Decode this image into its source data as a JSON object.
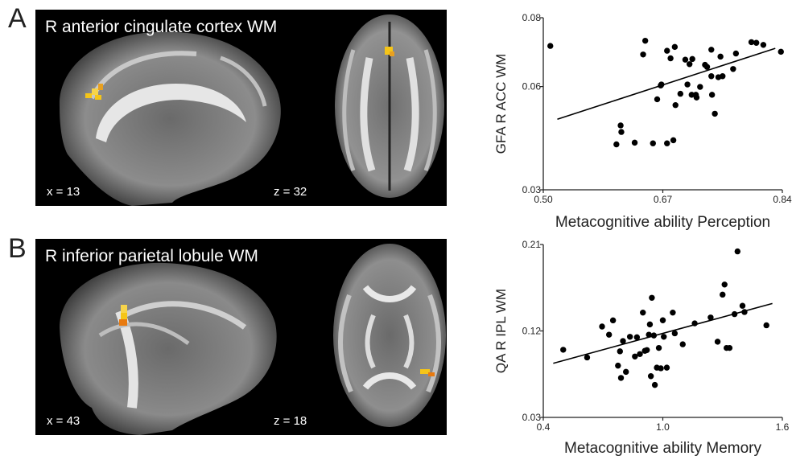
{
  "panels": [
    {
      "letter": "A",
      "title": "R anterior cingulate cortex WM",
      "sagittal_coord": "x = 13",
      "axial_coord": "z = 32"
    },
    {
      "letter": "B",
      "title": "R inferior parietal lobule WM",
      "sagittal_coord": "x = 43",
      "axial_coord": "z = 18"
    }
  ],
  "colors": {
    "highlight": "#f5c518",
    "highlight_edge": "#e87a10",
    "background": "#000000",
    "points": "#000000"
  },
  "chart_data": [
    {
      "type": "scatter",
      "xlabel": "Metacognitive ability Perception",
      "ylabel": "GFA R ACC WM",
      "xlim": [
        0.5,
        0.84
      ],
      "ylim": [
        0.03,
        0.08
      ],
      "xticks": [
        "0.50",
        "0.67",
        "0.84"
      ],
      "yticks": [
        "0.03",
        "0.06",
        "0.08"
      ],
      "ytick_values": [
        0.03,
        0.06,
        0.08
      ],
      "xtick_values": [
        0.5,
        0.67,
        0.84
      ],
      "fit_line": [
        [
          0.52,
          0.0505
        ],
        [
          0.83,
          0.0711
        ]
      ],
      "points": [
        [
          0.51,
          0.0718
        ],
        [
          0.61,
          0.0487
        ],
        [
          0.611,
          0.0468
        ],
        [
          0.604,
          0.0432
        ],
        [
          0.63,
          0.0437
        ],
        [
          0.645,
          0.0733
        ],
        [
          0.642,
          0.0693
        ],
        [
          0.656,
          0.0435
        ],
        [
          0.676,
          0.0435
        ],
        [
          0.662,
          0.0563
        ],
        [
          0.667,
          0.0603
        ],
        [
          0.668,
          0.0606
        ],
        [
          0.681,
          0.0682
        ],
        [
          0.688,
          0.0546
        ],
        [
          0.685,
          0.0444
        ],
        [
          0.676,
          0.0704
        ],
        [
          0.687,
          0.0715
        ],
        [
          0.695,
          0.0579
        ],
        [
          0.705,
          0.0606
        ],
        [
          0.702,
          0.0678
        ],
        [
          0.708,
          0.0665
        ],
        [
          0.711,
          0.0576
        ],
        [
          0.712,
          0.068
        ],
        [
          0.718,
          0.0568
        ],
        [
          0.723,
          0.0599
        ],
        [
          0.73,
          0.0663
        ],
        [
          0.733,
          0.0657
        ],
        [
          0.74,
          0.0576
        ],
        [
          0.739,
          0.0707
        ],
        [
          0.717,
          0.0576
        ],
        [
          0.739,
          0.063
        ],
        [
          0.744,
          0.0521
        ],
        [
          0.752,
          0.0687
        ],
        [
          0.749,
          0.0627
        ],
        [
          0.755,
          0.063
        ],
        [
          0.77,
          0.0651
        ],
        [
          0.774,
          0.0696
        ],
        [
          0.796,
          0.0729
        ],
        [
          0.803,
          0.0727
        ],
        [
          0.813,
          0.0721
        ],
        [
          0.838,
          0.0701
        ]
      ]
    },
    {
      "type": "scatter",
      "xlabel": "Metacognitive ability Memory",
      "ylabel": "QA R IPL WM",
      "xlim": [
        0.4,
        1.6
      ],
      "ylim": [
        0.03,
        0.21
      ],
      "xticks": [
        "0.4",
        "1.0",
        "1.6"
      ],
      "yticks": [
        "0.03",
        "0.12",
        "0.21"
      ],
      "ytick_values": [
        0.03,
        0.12,
        0.21
      ],
      "xtick_values": [
        0.4,
        1.0,
        1.6
      ],
      "fit_line": [
        [
          0.45,
          0.0863
        ],
        [
          1.55,
          0.1486
        ]
      ],
      "points": [
        [
          0.5,
          0.1004
        ],
        [
          0.62,
          0.0924
        ],
        [
          0.695,
          0.1246
        ],
        [
          0.73,
          0.1161
        ],
        [
          0.75,
          0.131
        ],
        [
          0.775,
          0.0839
        ],
        [
          0.785,
          0.0988
        ],
        [
          0.79,
          0.0711
        ],
        [
          0.8,
          0.1095
        ],
        [
          0.815,
          0.0774
        ],
        [
          0.835,
          0.1139
        ],
        [
          0.86,
          0.0934
        ],
        [
          0.87,
          0.1134
        ],
        [
          0.885,
          0.0959
        ],
        [
          0.9,
          0.1391
        ],
        [
          0.91,
          0.0993
        ],
        [
          0.92,
          0.1001
        ],
        [
          0.93,
          0.1161
        ],
        [
          0.935,
          0.1268
        ],
        [
          0.94,
          0.0729
        ],
        [
          0.945,
          0.1545
        ],
        [
          0.955,
          0.1153
        ],
        [
          0.96,
          0.0638
        ],
        [
          0.97,
          0.0818
        ],
        [
          0.98,
          0.1023
        ],
        [
          0.99,
          0.0811
        ],
        [
          1.0,
          0.1311
        ],
        [
          1.005,
          0.1139
        ],
        [
          1.02,
          0.0818
        ],
        [
          1.05,
          0.1391
        ],
        [
          1.06,
          0.1175
        ],
        [
          1.1,
          0.1061
        ],
        [
          1.16,
          0.1279
        ],
        [
          1.24,
          0.134
        ],
        [
          1.275,
          0.1088
        ],
        [
          1.3,
          0.1578
        ],
        [
          1.31,
          0.1683
        ],
        [
          1.32,
          0.1023
        ],
        [
          1.335,
          0.1023
        ],
        [
          1.36,
          0.1375
        ],
        [
          1.375,
          0.2028
        ],
        [
          1.4,
          0.1462
        ],
        [
          1.41,
          0.1397
        ],
        [
          1.52,
          0.1259
        ]
      ]
    }
  ]
}
